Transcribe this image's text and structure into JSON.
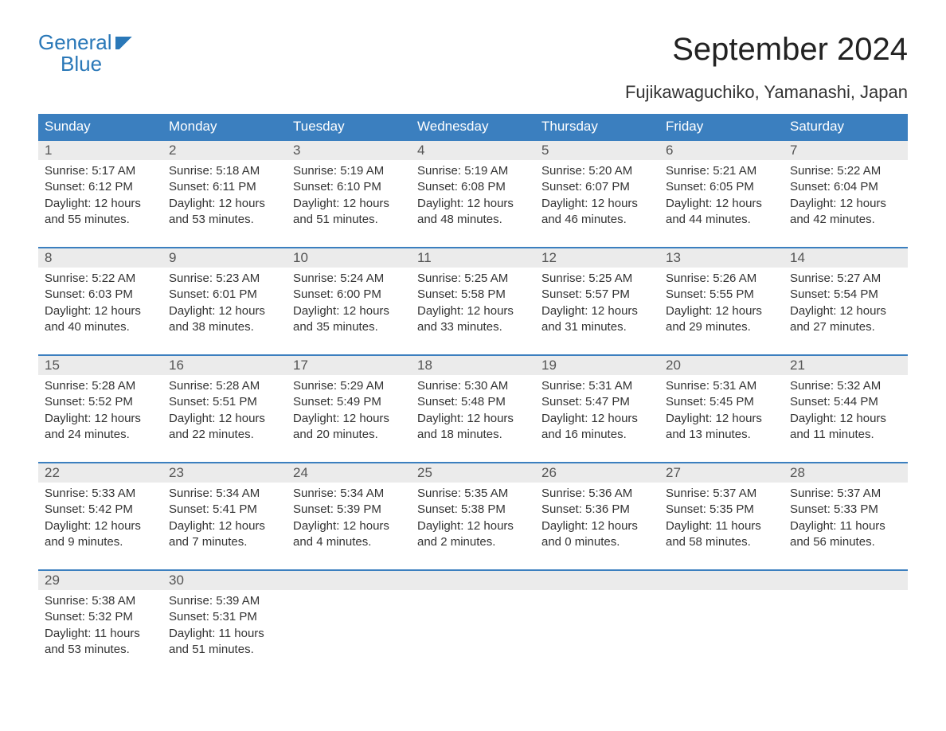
{
  "logo": {
    "line1": "General",
    "line2": "Blue",
    "brand_color": "#2a78b8"
  },
  "header": {
    "month_title": "September 2024",
    "location": "Fujikawaguchiko, Yamanashi, Japan"
  },
  "colors": {
    "header_bg": "#3b7fbf",
    "header_text": "#ffffff",
    "daynum_bg": "#ebebeb",
    "text": "#333333",
    "week_border": "#3b7fbf",
    "page_bg": "#ffffff"
  },
  "typography": {
    "title_fontsize": 40,
    "subtitle_fontsize": 22,
    "weekday_fontsize": 17,
    "daynum_fontsize": 17,
    "body_fontsize": 15
  },
  "calendar": {
    "type": "table",
    "weekdays": [
      "Sunday",
      "Monday",
      "Tuesday",
      "Wednesday",
      "Thursday",
      "Friday",
      "Saturday"
    ],
    "weeks": [
      [
        {
          "num": "1",
          "sunrise": "Sunrise: 5:17 AM",
          "sunset": "Sunset: 6:12 PM",
          "daylight": "Daylight: 12 hours and 55 minutes."
        },
        {
          "num": "2",
          "sunrise": "Sunrise: 5:18 AM",
          "sunset": "Sunset: 6:11 PM",
          "daylight": "Daylight: 12 hours and 53 minutes."
        },
        {
          "num": "3",
          "sunrise": "Sunrise: 5:19 AM",
          "sunset": "Sunset: 6:10 PM",
          "daylight": "Daylight: 12 hours and 51 minutes."
        },
        {
          "num": "4",
          "sunrise": "Sunrise: 5:19 AM",
          "sunset": "Sunset: 6:08 PM",
          "daylight": "Daylight: 12 hours and 48 minutes."
        },
        {
          "num": "5",
          "sunrise": "Sunrise: 5:20 AM",
          "sunset": "Sunset: 6:07 PM",
          "daylight": "Daylight: 12 hours and 46 minutes."
        },
        {
          "num": "6",
          "sunrise": "Sunrise: 5:21 AM",
          "sunset": "Sunset: 6:05 PM",
          "daylight": "Daylight: 12 hours and 44 minutes."
        },
        {
          "num": "7",
          "sunrise": "Sunrise: 5:22 AM",
          "sunset": "Sunset: 6:04 PM",
          "daylight": "Daylight: 12 hours and 42 minutes."
        }
      ],
      [
        {
          "num": "8",
          "sunrise": "Sunrise: 5:22 AM",
          "sunset": "Sunset: 6:03 PM",
          "daylight": "Daylight: 12 hours and 40 minutes."
        },
        {
          "num": "9",
          "sunrise": "Sunrise: 5:23 AM",
          "sunset": "Sunset: 6:01 PM",
          "daylight": "Daylight: 12 hours and 38 minutes."
        },
        {
          "num": "10",
          "sunrise": "Sunrise: 5:24 AM",
          "sunset": "Sunset: 6:00 PM",
          "daylight": "Daylight: 12 hours and 35 minutes."
        },
        {
          "num": "11",
          "sunrise": "Sunrise: 5:25 AM",
          "sunset": "Sunset: 5:58 PM",
          "daylight": "Daylight: 12 hours and 33 minutes."
        },
        {
          "num": "12",
          "sunrise": "Sunrise: 5:25 AM",
          "sunset": "Sunset: 5:57 PM",
          "daylight": "Daylight: 12 hours and 31 minutes."
        },
        {
          "num": "13",
          "sunrise": "Sunrise: 5:26 AM",
          "sunset": "Sunset: 5:55 PM",
          "daylight": "Daylight: 12 hours and 29 minutes."
        },
        {
          "num": "14",
          "sunrise": "Sunrise: 5:27 AM",
          "sunset": "Sunset: 5:54 PM",
          "daylight": "Daylight: 12 hours and 27 minutes."
        }
      ],
      [
        {
          "num": "15",
          "sunrise": "Sunrise: 5:28 AM",
          "sunset": "Sunset: 5:52 PM",
          "daylight": "Daylight: 12 hours and 24 minutes."
        },
        {
          "num": "16",
          "sunrise": "Sunrise: 5:28 AM",
          "sunset": "Sunset: 5:51 PM",
          "daylight": "Daylight: 12 hours and 22 minutes."
        },
        {
          "num": "17",
          "sunrise": "Sunrise: 5:29 AM",
          "sunset": "Sunset: 5:49 PM",
          "daylight": "Daylight: 12 hours and 20 minutes."
        },
        {
          "num": "18",
          "sunrise": "Sunrise: 5:30 AM",
          "sunset": "Sunset: 5:48 PM",
          "daylight": "Daylight: 12 hours and 18 minutes."
        },
        {
          "num": "19",
          "sunrise": "Sunrise: 5:31 AM",
          "sunset": "Sunset: 5:47 PM",
          "daylight": "Daylight: 12 hours and 16 minutes."
        },
        {
          "num": "20",
          "sunrise": "Sunrise: 5:31 AM",
          "sunset": "Sunset: 5:45 PM",
          "daylight": "Daylight: 12 hours and 13 minutes."
        },
        {
          "num": "21",
          "sunrise": "Sunrise: 5:32 AM",
          "sunset": "Sunset: 5:44 PM",
          "daylight": "Daylight: 12 hours and 11 minutes."
        }
      ],
      [
        {
          "num": "22",
          "sunrise": "Sunrise: 5:33 AM",
          "sunset": "Sunset: 5:42 PM",
          "daylight": "Daylight: 12 hours and 9 minutes."
        },
        {
          "num": "23",
          "sunrise": "Sunrise: 5:34 AM",
          "sunset": "Sunset: 5:41 PM",
          "daylight": "Daylight: 12 hours and 7 minutes."
        },
        {
          "num": "24",
          "sunrise": "Sunrise: 5:34 AM",
          "sunset": "Sunset: 5:39 PM",
          "daylight": "Daylight: 12 hours and 4 minutes."
        },
        {
          "num": "25",
          "sunrise": "Sunrise: 5:35 AM",
          "sunset": "Sunset: 5:38 PM",
          "daylight": "Daylight: 12 hours and 2 minutes."
        },
        {
          "num": "26",
          "sunrise": "Sunrise: 5:36 AM",
          "sunset": "Sunset: 5:36 PM",
          "daylight": "Daylight: 12 hours and 0 minutes."
        },
        {
          "num": "27",
          "sunrise": "Sunrise: 5:37 AM",
          "sunset": "Sunset: 5:35 PM",
          "daylight": "Daylight: 11 hours and 58 minutes."
        },
        {
          "num": "28",
          "sunrise": "Sunrise: 5:37 AM",
          "sunset": "Sunset: 5:33 PM",
          "daylight": "Daylight: 11 hours and 56 minutes."
        }
      ],
      [
        {
          "num": "29",
          "sunrise": "Sunrise: 5:38 AM",
          "sunset": "Sunset: 5:32 PM",
          "daylight": "Daylight: 11 hours and 53 minutes."
        },
        {
          "num": "30",
          "sunrise": "Sunrise: 5:39 AM",
          "sunset": "Sunset: 5:31 PM",
          "daylight": "Daylight: 11 hours and 51 minutes."
        },
        null,
        null,
        null,
        null,
        null
      ]
    ]
  }
}
